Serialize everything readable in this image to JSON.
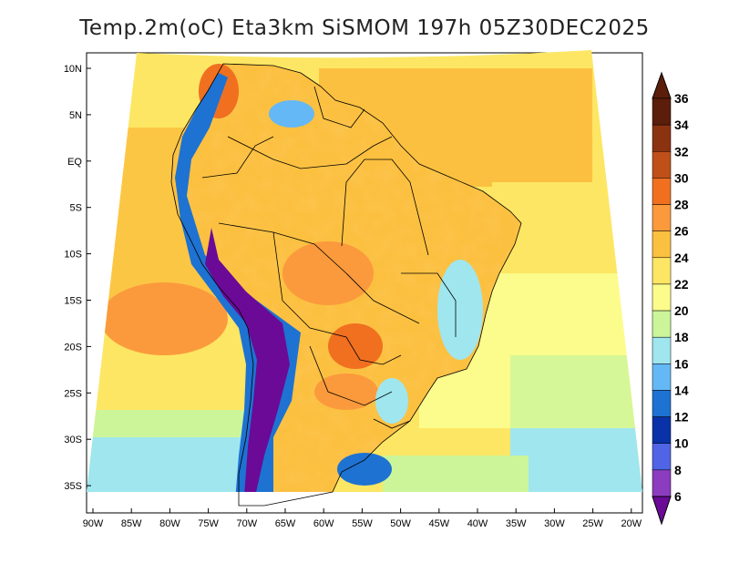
{
  "title": "Temp.2m(oC) Eta3km SiSMOM 197h 05Z30DEC2025",
  "lat_labels": [
    "10N",
    "5N",
    "EQ",
    "5S",
    "10S",
    "15S",
    "20S",
    "25S",
    "30S",
    "35S"
  ],
  "lon_labels": [
    "90W",
    "85W",
    "80W",
    "75W",
    "70W",
    "65W",
    "60W",
    "55W",
    "50W",
    "45W",
    "40W",
    "35W",
    "30W",
    "25W",
    "20W"
  ],
  "colorbar": {
    "ticks": [
      "36",
      "34",
      "32",
      "30",
      "28",
      "26",
      "24",
      "22",
      "20",
      "18",
      "16",
      "14",
      "12",
      "10",
      "8",
      "6"
    ],
    "colors": [
      "#5a1e0a",
      "#8b3210",
      "#c0501a",
      "#f07020",
      "#fb9a3c",
      "#fcc040",
      "#fde663",
      "#fcfc8c",
      "#ccf59a",
      "#9fe6ef",
      "#64b8f5",
      "#1e72d2",
      "#0a32a8",
      "#5064e6",
      "#8c3cbe",
      "#6a0a96"
    ]
  },
  "map_colors": {
    "ocean_warm": "#fcc040",
    "ocean_mid": "#fde663",
    "ocean_cool": "#fcfc8c",
    "ocean_cold": "#ccf59a",
    "ocean_south": "#9fe6ef",
    "land": "#fcc040",
    "andes_cold": "#6a0a96",
    "andes_blue": "#1e72d2",
    "border": "#000000"
  }
}
